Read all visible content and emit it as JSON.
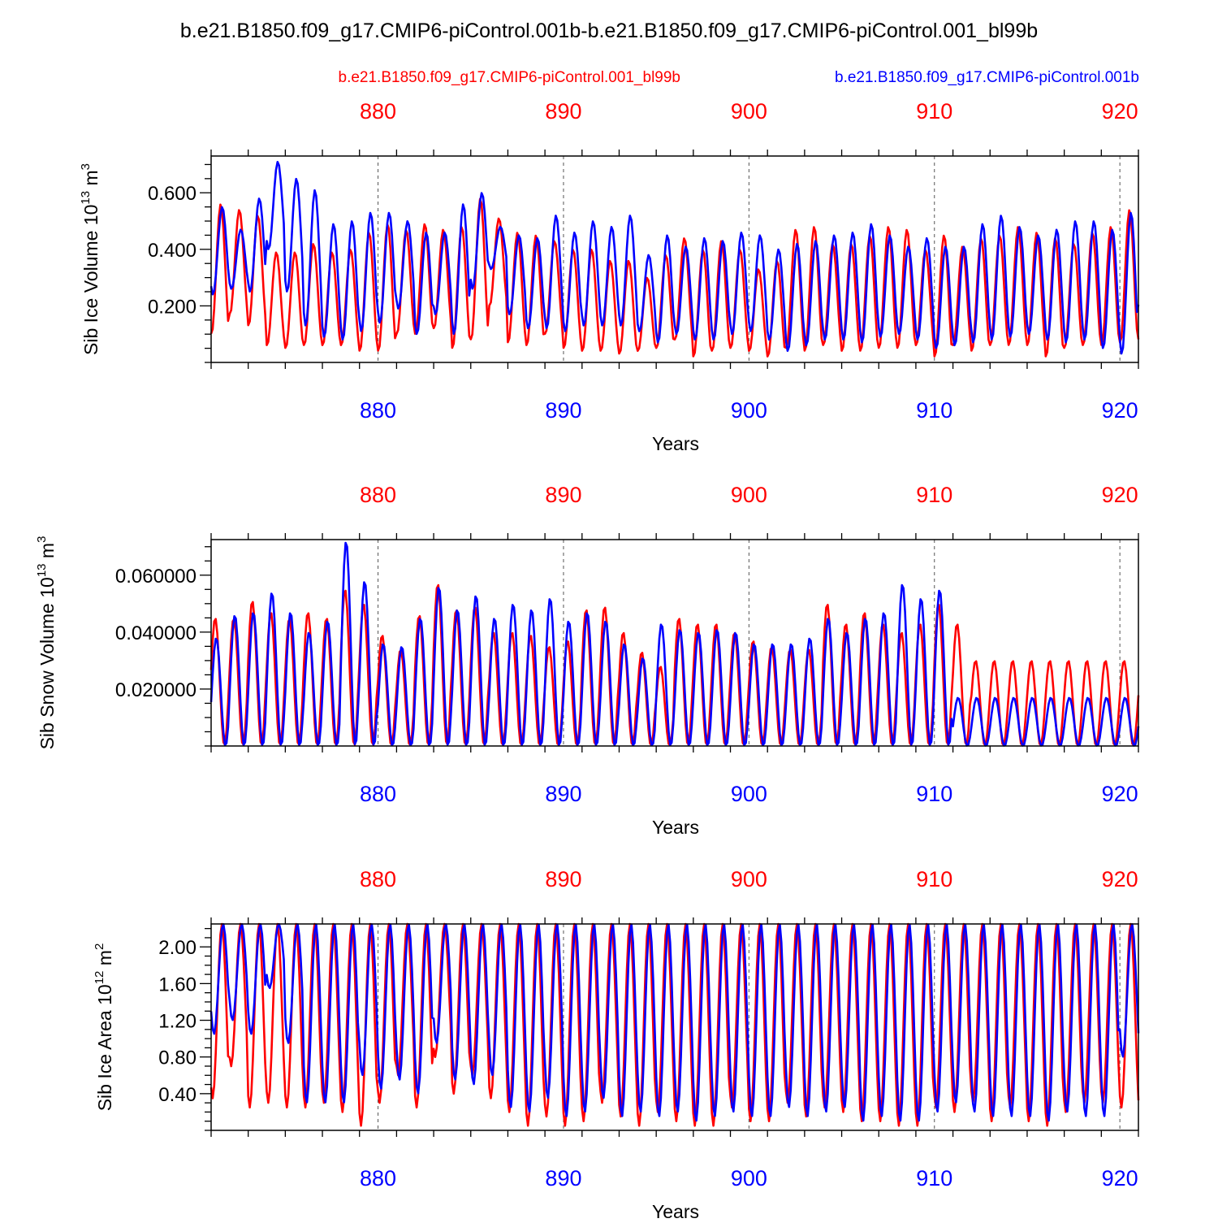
{
  "title": "b.e21.B1850.f09_g17.CMIP6-piControl.001b-b.e21.B1850.f09_g17.CMIP6-piControl.001_bl99b",
  "legend": {
    "red_label": "b.e21.B1850.f09_g17.CMIP6-piControl.001_bl99b",
    "blue_label": "b.e21.B1850.f09_g17.CMIP6-piControl.001b"
  },
  "colors": {
    "red": "#ff0000",
    "blue": "#0000ff",
    "axis": "#000000",
    "grid": "#555555"
  },
  "chart_data": [
    {
      "type": "line",
      "name": "sib-ice-volume",
      "ylabel_main": "Sib Ice Volume 10",
      "ylabel_exp": "13",
      "ylabel_unit": " m",
      "ylabel_unit_exp": "3",
      "xlabel": "Years",
      "xlim": [
        871.0,
        921.0
      ],
      "ylim": [
        0.0,
        0.73
      ],
      "xticks": [
        880,
        890,
        900,
        910,
        920
      ],
      "xtick_labels_top": [
        "880",
        "890",
        "900",
        "910",
        "920"
      ],
      "xtick_labels_bottom": [
        "880",
        "890",
        "900",
        "910",
        "920"
      ],
      "yticks": [
        0.2,
        0.4,
        0.6
      ],
      "ytick_labels": [
        "0.200",
        "0.400",
        "0.600"
      ],
      "yminor_step": 0.05,
      "clip_min": 0.02,
      "clip_max": 0.72,
      "series": [
        {
          "name": "b.e21.B1850.f09_g17.CMIP6-piControl.001_bl99b",
          "color": "#ff0000",
          "phase": 0.52,
          "maxima": [
            0.56,
            0.54,
            0.52,
            0.39,
            0.39,
            0.42,
            0.39,
            0.4,
            0.46,
            0.49,
            0.47,
            0.49,
            0.47,
            0.48,
            0.58,
            0.51,
            0.46,
            0.45,
            0.43,
            0.4,
            0.4,
            0.36,
            0.36,
            0.3,
            0.38,
            0.44,
            0.4,
            0.43,
            0.4,
            0.33,
            0.36,
            0.47,
            0.48,
            0.42,
            0.42,
            0.45,
            0.48,
            0.47,
            0.4,
            0.45,
            0.41,
            0.44,
            0.45,
            0.48,
            0.46,
            0.44,
            0.42,
            0.46,
            0.48,
            0.54,
            0.48
          ],
          "minima": [
            0.1,
            0.17,
            0.13,
            0.06,
            0.05,
            0.06,
            0.06,
            0.06,
            0.04,
            0.04,
            0.1,
            0.1,
            0.12,
            0.05,
            0.08,
            0.2,
            0.07,
            0.06,
            0.1,
            0.05,
            0.04,
            0.04,
            0.03,
            0.04,
            0.05,
            0.08,
            0.02,
            0.04,
            0.05,
            0.04,
            0.02,
            0.05,
            0.04,
            0.06,
            0.04,
            0.04,
            0.05,
            0.05,
            0.06,
            0.02,
            0.06,
            0.04,
            0.06,
            0.06,
            0.06,
            0.02,
            0.05,
            0.06,
            0.06,
            0.07,
            0.08
          ]
        },
        {
          "name": "b.e21.B1850.f09_g17.CMIP6-piControl.001b",
          "color": "#0000ff",
          "phase": 0.6,
          "maxima": [
            0.55,
            0.47,
            0.58,
            0.71,
            0.65,
            0.61,
            0.49,
            0.5,
            0.53,
            0.53,
            0.5,
            0.46,
            0.46,
            0.56,
            0.6,
            0.48,
            0.45,
            0.44,
            0.52,
            0.46,
            0.5,
            0.48,
            0.52,
            0.38,
            0.45,
            0.41,
            0.44,
            0.43,
            0.46,
            0.45,
            0.4,
            0.42,
            0.43,
            0.45,
            0.46,
            0.49,
            0.45,
            0.41,
            0.44,
            0.41,
            0.41,
            0.49,
            0.52,
            0.48,
            0.45,
            0.47,
            0.5,
            0.5,
            0.47,
            0.53,
            0.53
          ],
          "minima": [
            0.24,
            0.26,
            0.25,
            0.4,
            0.25,
            0.13,
            0.09,
            0.08,
            0.11,
            0.14,
            0.19,
            0.1,
            0.17,
            0.1,
            0.26,
            0.33,
            0.17,
            0.12,
            0.12,
            0.11,
            0.13,
            0.13,
            0.13,
            0.11,
            0.07,
            0.1,
            0.08,
            0.08,
            0.1,
            0.11,
            0.08,
            0.04,
            0.06,
            0.08,
            0.08,
            0.07,
            0.09,
            0.1,
            0.08,
            0.05,
            0.06,
            0.07,
            0.08,
            0.09,
            0.1,
            0.08,
            0.07,
            0.08,
            0.05,
            0.03,
            0.17
          ]
        }
      ]
    },
    {
      "type": "line",
      "name": "sib-snow-volume",
      "ylabel_main": "Sib Snow Volume 10",
      "ylabel_exp": "13",
      "ylabel_unit": " m",
      "ylabel_unit_exp": "3",
      "xlabel": "Years",
      "xlim": [
        871.0,
        921.0
      ],
      "ylim": [
        0.0,
        0.0725
      ],
      "xticks": [
        880,
        890,
        900,
        910,
        920
      ],
      "xtick_labels_top": [
        "880",
        "890",
        "900",
        "910",
        "920"
      ],
      "xtick_labels_bottom": [
        "880",
        "890",
        "900",
        "910",
        "920"
      ],
      "yticks": [
        0.02,
        0.04,
        0.06
      ],
      "ytick_labels": [
        "0.020000",
        "0.040000",
        "0.060000"
      ],
      "yminor_step": 0.005,
      "clip_min": 0.0,
      "clip_max": 0.0722,
      "series": [
        {
          "name": "b.e21.B1850.f09_g17.CMIP6-piControl.001_bl99b",
          "color": "#ff0000",
          "phase": 0.22,
          "maxima": [
            0.045,
            0.045,
            0.051,
            0.047,
            0.045,
            0.047,
            0.045,
            0.055,
            0.05,
            0.039,
            0.034,
            0.046,
            0.057,
            0.048,
            0.049,
            0.04,
            0.04,
            0.039,
            0.035,
            0.037,
            0.048,
            0.049,
            0.04,
            0.033,
            0.028,
            0.045,
            0.043,
            0.043,
            0.04,
            0.037,
            0.035,
            0.034,
            0.034,
            0.05,
            0.043,
            0.047,
            0.043,
            0.04,
            0.043,
            0.05,
            0.043,
            0.03
          ],
          "minima": [
            0.0
          ]
        },
        {
          "name": "b.e21.B1850.f09_g17.CMIP6-piControl.001b",
          "color": "#0000ff",
          "phase": 0.28,
          "maxima": [
            0.038,
            0.046,
            0.047,
            0.054,
            0.047,
            0.04,
            0.044,
            0.072,
            0.058,
            0.036,
            0.035,
            0.045,
            0.056,
            0.048,
            0.053,
            0.045,
            0.05,
            0.048,
            0.052,
            0.044,
            0.047,
            0.044,
            0.036,
            0.031,
            0.043,
            0.041,
            0.04,
            0.041,
            0.04,
            0.036,
            0.036,
            0.036,
            0.038,
            0.045,
            0.04,
            0.045,
            0.047,
            0.057,
            0.052,
            0.055,
            0.017
          ],
          "minima": [
            0.0
          ]
        }
      ]
    },
    {
      "type": "line",
      "name": "sib-ice-area",
      "ylabel_main": "Sib Ice Area 10",
      "ylabel_exp": "12",
      "ylabel_unit": " m",
      "ylabel_unit_exp": "2",
      "xlabel": "Years",
      "xlim": [
        871.0,
        921.0
      ],
      "ylim": [
        0.0,
        2.25
      ],
      "xticks": [
        880,
        890,
        900,
        910,
        920
      ],
      "xtick_labels_top": [
        "880",
        "890",
        "900",
        "910",
        "920"
      ],
      "xtick_labels_bottom": [
        "880",
        "890",
        "900",
        "910",
        "920"
      ],
      "yticks": [
        0.4,
        0.8,
        1.2,
        1.6,
        2.0
      ],
      "ytick_labels": [
        "0.40",
        "0.80",
        "1.20",
        "1.60",
        "2.00"
      ],
      "yminor_step": 0.1,
      "clip_min": 0.0,
      "clip_max": 2.25,
      "series": [
        {
          "name": "b.e21.B1850.f09_g17.CMIP6-piControl.001_bl99b",
          "color": "#ff0000",
          "phase": 0.58,
          "maxima": [
            2.25
          ],
          "minima": [
            0.35,
            0.7,
            0.25,
            0.3,
            0.25,
            0.25,
            0.3,
            0.2,
            0.05,
            0.3,
            0.6,
            0.25,
            0.8,
            0.4,
            0.6,
            0.35,
            0.2,
            0.05,
            0.15,
            0.05,
            0.1,
            0.3,
            0.15,
            0.05,
            0.2,
            0.1,
            0.05,
            0.05,
            0.25,
            0.1,
            0.1,
            0.3,
            0.15,
            0.25,
            0.2,
            0.1,
            0.1,
            0.05,
            0.05,
            0.25,
            0.2,
            0.3,
            0.1,
            0.25,
            0.1,
            0.05,
            0.2,
            0.3,
            0.3,
            0.25,
            0.2
          ]
        },
        {
          "name": "b.e21.B1850.f09_g17.CMIP6-piControl.001b",
          "color": "#0000ff",
          "phase": 0.65,
          "maxima": [
            2.25
          ],
          "minima": [
            1.05,
            1.2,
            1.05,
            1.55,
            0.95,
            0.3,
            0.3,
            0.3,
            0.6,
            0.45,
            0.55,
            0.4,
            0.95,
            0.55,
            0.5,
            0.6,
            0.25,
            0.2,
            0.35,
            0.15,
            0.2,
            0.35,
            0.15,
            0.2,
            0.15,
            0.2,
            0.1,
            0.15,
            0.2,
            0.15,
            0.15,
            0.25,
            0.15,
            0.2,
            0.25,
            0.1,
            0.15,
            0.1,
            0.1,
            0.2,
            0.3,
            0.2,
            0.15,
            0.15,
            0.15,
            0.1,
            0.2,
            0.15,
            0.15,
            0.8,
            0.75
          ]
        }
      ]
    }
  ]
}
